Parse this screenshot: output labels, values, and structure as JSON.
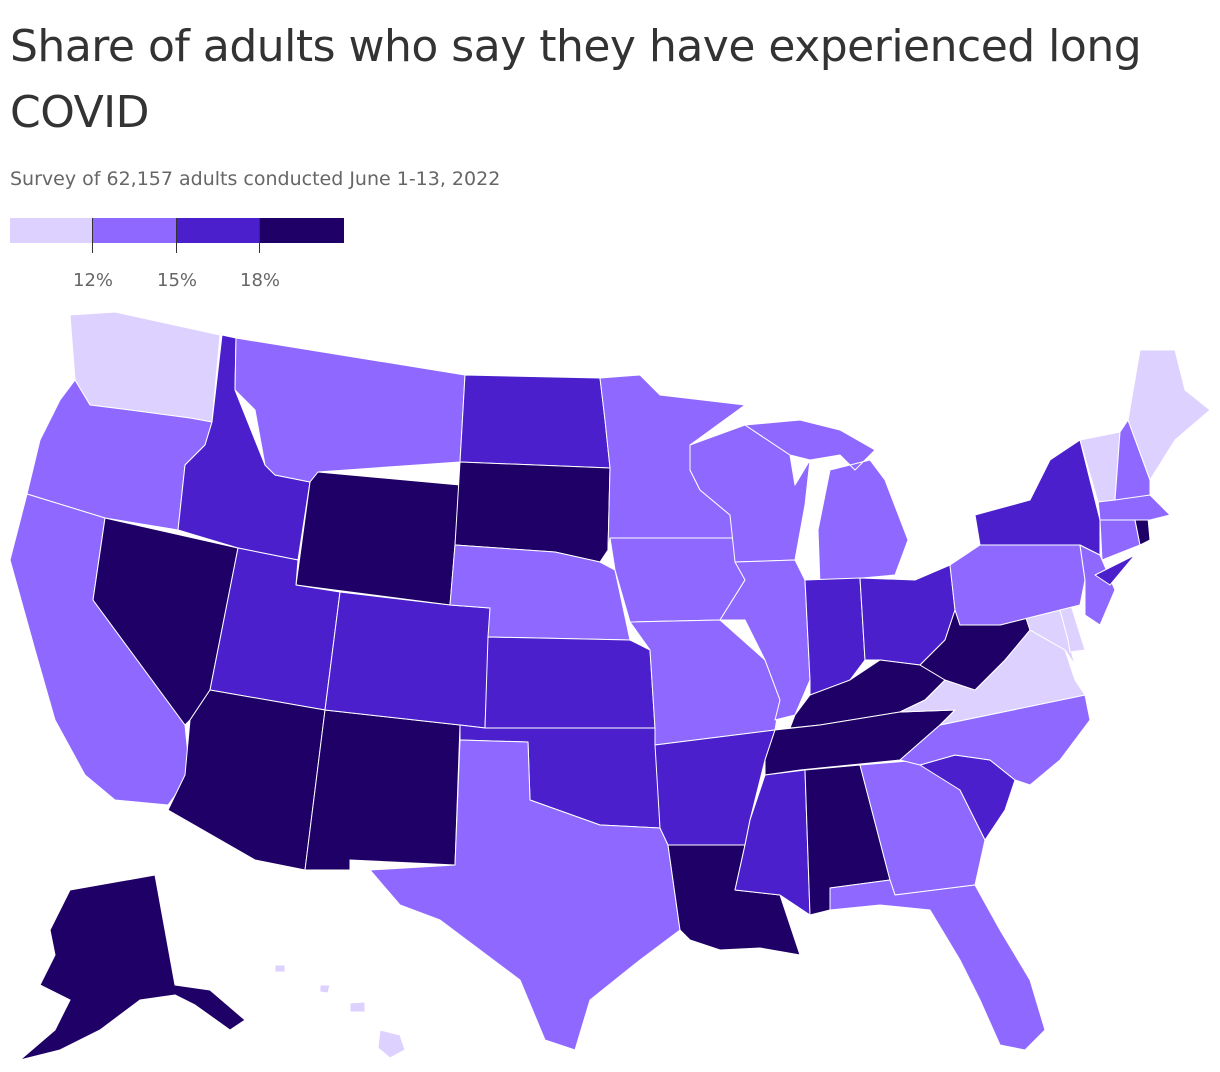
{
  "header": {
    "title": "Share of adults who say they have experienced long COVID",
    "subtitle": "Survey of 62,157 adults conducted June 1-13, 2022"
  },
  "legend": {
    "bins": [
      {
        "color": "#ddd1ff",
        "label": ""
      },
      {
        "color": "#8f69ff",
        "label": "12%"
      },
      {
        "color": "#4b20cc",
        "label": "15%"
      },
      {
        "color": "#1f0066",
        "label": "18%"
      }
    ]
  },
  "map_data": {
    "type": "choropleth",
    "classes": [
      "<12%",
      "12%–15%",
      "15%–18%",
      "≥18%"
    ],
    "states": {
      "WA": 0,
      "OR": 1,
      "CA": 1,
      "NV": 3,
      "ID": 2,
      "MT": 1,
      "WY": 3,
      "UT": 2,
      "AZ": 3,
      "NM": 3,
      "CO": 2,
      "ND": 2,
      "SD": 3,
      "NE": 1,
      "KS": 2,
      "OK": 2,
      "TX": 1,
      "MN": 1,
      "IA": 1,
      "MO": 1,
      "AR": 2,
      "LA": 3,
      "WI": 1,
      "IL": 1,
      "MI": 1,
      "IN": 2,
      "OH": 2,
      "KY": 3,
      "TN": 3,
      "MS": 2,
      "AL": 3,
      "GA": 1,
      "FL": 1,
      "SC": 2,
      "NC": 1,
      "VA": 0,
      "WV": 3,
      "MD": 0,
      "DE": 0,
      "PA": 1,
      "NJ": 1,
      "NY": 2,
      "CT": 1,
      "RI": 3,
      "MA": 1,
      "VT": 0,
      "NH": 1,
      "ME": 0,
      "AK": 3,
      "HI": 0
    }
  }
}
